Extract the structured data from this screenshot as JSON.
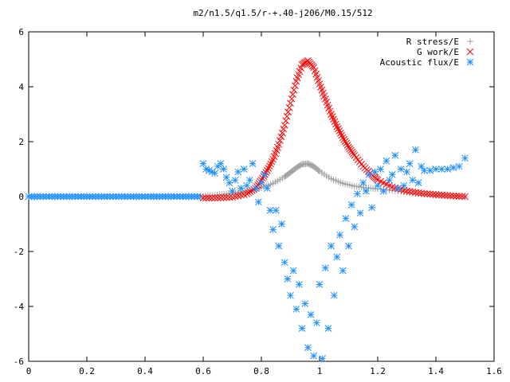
{
  "chart_data": {
    "type": "scatter",
    "title": "m2/n1.5/q1.5/r-+.40-j206/M0.15/512",
    "xlabel": "",
    "ylabel": "",
    "xlim": [
      0,
      1.6
    ],
    "ylim": [
      -6,
      6
    ],
    "xticks": [
      "0",
      "0.2",
      "0.4",
      "0.6",
      "0.8",
      "1",
      "1.2",
      "1.4",
      "1.6"
    ],
    "yticks": [
      "6",
      "4",
      "2",
      "0",
      "-2",
      "-4",
      "-6"
    ],
    "grid": false,
    "legend_position": "top-right",
    "series": [
      {
        "name": "R stress/E",
        "marker": "plus",
        "color": "#a0a0a0",
        "x": [
          0.6,
          0.64,
          0.68,
          0.72,
          0.76,
          0.8,
          0.84,
          0.88,
          0.9,
          0.92,
          0.94,
          0.96,
          0.98,
          1.0,
          1.04,
          1.08,
          1.12,
          1.16,
          1.2,
          1.25,
          1.3,
          1.35,
          1.4,
          1.45,
          1.5
        ],
        "y": [
          0.0,
          0.05,
          0.1,
          0.15,
          0.22,
          0.32,
          0.48,
          0.72,
          0.88,
          1.05,
          1.18,
          1.2,
          1.1,
          0.92,
          0.65,
          0.48,
          0.38,
          0.32,
          0.28,
          0.22,
          0.16,
          0.1,
          0.06,
          0.03,
          0.0
        ]
      },
      {
        "name": "G work/E",
        "marker": "cross",
        "color": "#ff0000",
        "x": [
          0.6,
          0.65,
          0.7,
          0.75,
          0.78,
          0.8,
          0.82,
          0.84,
          0.86,
          0.88,
          0.9,
          0.92,
          0.94,
          0.96,
          0.98,
          1.0,
          1.02,
          1.04,
          1.06,
          1.08,
          1.1,
          1.12,
          1.15,
          1.18,
          1.2,
          1.25,
          1.3,
          1.35,
          1.4,
          1.45,
          1.5
        ],
        "y": [
          -0.05,
          -0.05,
          -0.02,
          0.1,
          0.3,
          0.6,
          0.95,
          1.35,
          1.9,
          2.6,
          3.4,
          4.2,
          4.8,
          4.95,
          4.7,
          4.1,
          3.55,
          3.0,
          2.55,
          2.15,
          1.8,
          1.5,
          1.1,
          0.8,
          0.6,
          0.35,
          0.2,
          0.12,
          0.07,
          0.03,
          0.0
        ]
      },
      {
        "name": "Acoustic flux/E",
        "marker": "star",
        "color": "#1e90ff",
        "x": [
          0.6,
          0.61,
          0.62,
          0.63,
          0.64,
          0.65,
          0.66,
          0.67,
          0.68,
          0.69,
          0.7,
          0.71,
          0.72,
          0.73,
          0.74,
          0.75,
          0.76,
          0.77,
          0.78,
          0.79,
          0.8,
          0.81,
          0.82,
          0.83,
          0.84,
          0.85,
          0.86,
          0.87,
          0.88,
          0.89,
          0.9,
          0.91,
          0.92,
          0.93,
          0.94,
          0.95,
          0.96,
          0.97,
          0.98,
          0.99,
          1.0,
          1.01,
          1.02,
          1.03,
          1.04,
          1.05,
          1.06,
          1.07,
          1.08,
          1.09,
          1.1,
          1.11,
          1.12,
          1.13,
          1.14,
          1.15,
          1.16,
          1.17,
          1.18,
          1.19,
          1.2,
          1.21,
          1.22,
          1.23,
          1.24,
          1.25,
          1.26,
          1.27,
          1.28,
          1.29,
          1.3,
          1.31,
          1.32,
          1.33,
          1.34,
          1.35,
          1.36,
          1.38,
          1.4,
          1.42,
          1.44,
          1.46,
          1.48,
          1.5
        ],
        "y": [
          1.2,
          1.0,
          0.95,
          0.9,
          0.85,
          1.1,
          1.2,
          1.0,
          0.7,
          0.5,
          0.2,
          0.6,
          0.9,
          0.3,
          1.0,
          0.4,
          0.6,
          1.2,
          0.3,
          -0.2,
          0.5,
          0.8,
          0.3,
          -0.5,
          -1.2,
          -0.5,
          -1.8,
          -1.0,
          -2.4,
          -3.0,
          -3.6,
          -2.7,
          -4.1,
          -3.2,
          -4.8,
          -3.9,
          -5.5,
          -4.3,
          -5.8,
          -4.6,
          -3.2,
          -5.9,
          -2.6,
          -4.8,
          -1.8,
          -3.6,
          -2.2,
          -1.4,
          -2.7,
          -0.8,
          -1.8,
          -0.3,
          -1.1,
          0.1,
          -0.6,
          0.5,
          0.2,
          0.8,
          -0.4,
          0.9,
          0.4,
          1.0,
          0.2,
          1.3,
          0.6,
          0.8,
          1.5,
          0.3,
          1.0,
          0.4,
          0.9,
          1.2,
          0.6,
          1.7,
          0.5,
          1.1,
          0.95,
          0.95,
          1.0,
          1.0,
          1.0,
          1.05,
          1.1,
          1.4
        ]
      }
    ]
  }
}
